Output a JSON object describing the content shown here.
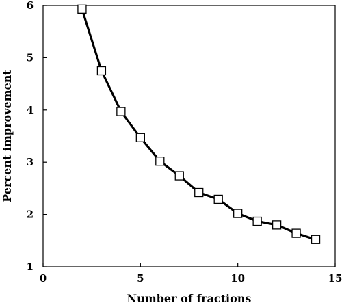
{
  "chart_data": {
    "type": "line",
    "title": "",
    "xlabel": "Number of fractions",
    "ylabel": "Percent  improvement",
    "xlim": [
      0,
      15
    ],
    "ylim": [
      1,
      6
    ],
    "x_ticks": [
      0,
      5,
      10,
      15
    ],
    "y_ticks": [
      1,
      2,
      3,
      4,
      5,
      6
    ],
    "x_tick_labels": [
      "0",
      "5",
      "10",
      "15"
    ],
    "y_tick_labels": [
      "1",
      "2",
      "3",
      "4",
      "5",
      "6"
    ],
    "grid": false,
    "legend": "none",
    "marker": "open-square",
    "line_color": "#000000",
    "series": [
      {
        "x": [
          2,
          3,
          4,
          5,
          6,
          7,
          8,
          9,
          10,
          11,
          12,
          13,
          14
        ],
        "values": [
          5.93,
          4.75,
          3.97,
          3.47,
          3.02,
          2.74,
          2.42,
          2.29,
          2.02,
          1.87,
          1.8,
          1.64,
          1.52
        ]
      }
    ]
  }
}
